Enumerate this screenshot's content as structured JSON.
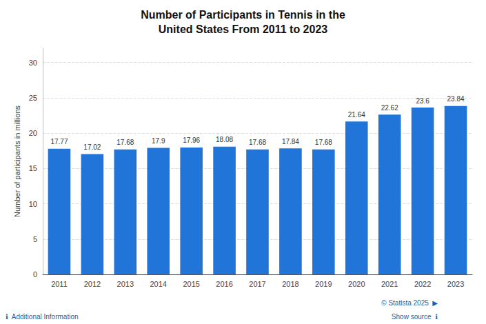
{
  "chart_data": {
    "type": "bar",
    "title": "Number of Participants in Tennis in the\nUnited States From 2011 to 2023",
    "categories": [
      "2011",
      "2012",
      "2013",
      "2014",
      "2015",
      "2016",
      "2017",
      "2018",
      "2019",
      "2020",
      "2021",
      "2022",
      "2023"
    ],
    "values": [
      17.77,
      17.02,
      17.68,
      17.9,
      17.96,
      18.08,
      17.68,
      17.84,
      17.68,
      21.64,
      22.62,
      23.6,
      23.84
    ],
    "color": "#2175d9",
    "ylabel": "Number of participants in millions",
    "ylim": [
      0,
      32
    ],
    "yticks": [
      0,
      5,
      10,
      15,
      20,
      25,
      30
    ],
    "grid": true,
    "data_labels": true,
    "annotations": [
      "© Statista 2025  ▶",
      "ℹ  Additional Information",
      "Show source  ℹ"
    ]
  }
}
